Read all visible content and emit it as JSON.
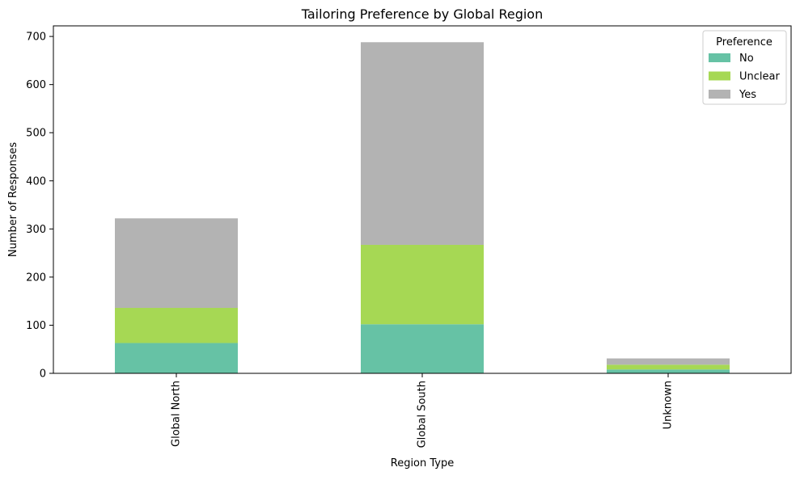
{
  "chart_data": {
    "type": "bar",
    "stacked": true,
    "title": "Tailoring Preference by Global Region",
    "xlabel": "Region Type",
    "ylabel": "Number of Responses",
    "categories": [
      "Global North",
      "Global South",
      "Unknown"
    ],
    "series": [
      {
        "name": "No",
        "values": [
          63,
          102,
          8
        ],
        "color": "#66c2a5"
      },
      {
        "name": "Unclear",
        "values": [
          73,
          165,
          10
        ],
        "color": "#a6d854"
      },
      {
        "name": "Yes",
        "values": [
          186,
          421,
          13
        ],
        "color": "#b3b3b3"
      }
    ],
    "ylim": [
      0,
      722
    ],
    "yticks": [
      0,
      100,
      200,
      300,
      400,
      500,
      600,
      700
    ],
    "grid": false,
    "legend": {
      "title": "Preference",
      "placement": "top-right"
    }
  }
}
